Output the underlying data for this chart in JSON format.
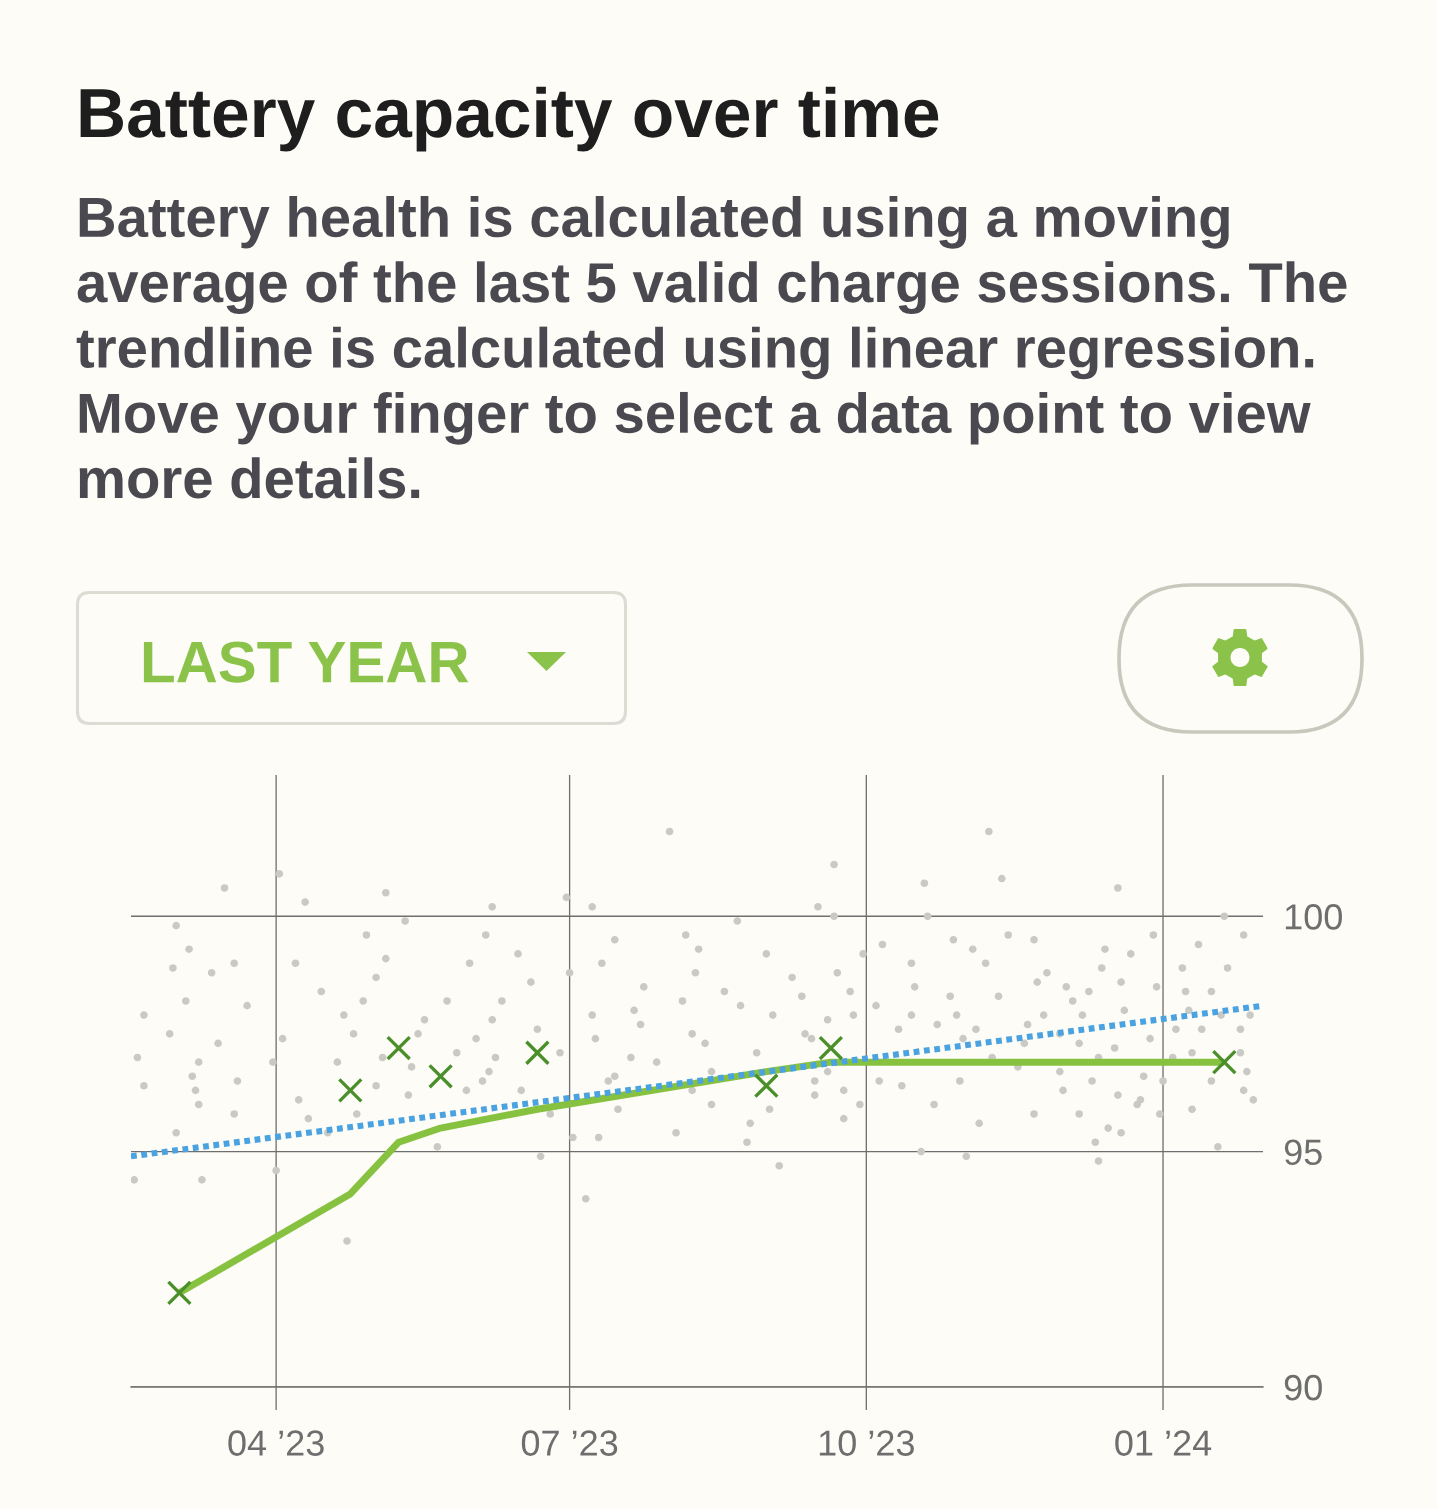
{
  "chart_data": {
    "type": "line",
    "title": "Battery capacity over time",
    "subtitle": "Battery health is calculated using a moving average of the last 5 valid charge sessions. The trendline is calculated using linear regression. Move your finger to select a data point to view more details.",
    "annotations": [
      "LAST YEAR"
    ],
    "x": [
      "2023-03-02",
      "2023-04-24",
      "2023-05-09",
      "2023-05-22",
      "2023-06-21",
      "2023-08-31",
      "2023-09-20",
      "2024-01-20"
    ],
    "series": [
      {
        "type": "scatter",
        "marker": "circle",
        "color": "#c9c9c6",
        "x": [
          "2023-04-02",
          "2023-03-16",
          "2023-04-10",
          "2023-03-01",
          "2023-03-05",
          "2023-02-28",
          "2023-03-12",
          "2023-04-07",
          "2023-04-15",
          "2023-02-19",
          "2023-03-04",
          "2023-03-23",
          "2023-02-27",
          "2023-03-14",
          "2023-04-22",
          "2023-02-17",
          "2023-03-08",
          "2023-03-06",
          "2023-03-31",
          "2023-02-19",
          "2023-03-07",
          "2023-03-20",
          "2023-03-08",
          "2023-03-19",
          "2023-03-01",
          "2023-04-11",
          "2023-04-17",
          "2023-02-16",
          "2023-03-09",
          "2023-04-01",
          "2023-04-23",
          "2023-04-08",
          "2023-04-03",
          "2023-04-20",
          "2023-03-19",
          "2023-05-05",
          "2023-06-07",
          "2023-06-30",
          "2023-05-11",
          "2023-04-29",
          "2023-06-05",
          "2023-05-05",
          "2023-06-15",
          "2023-05-02",
          "2023-05-31",
          "2023-07-01",
          "2023-06-19",
          "2023-04-28",
          "2023-05-24",
          "2023-06-10",
          "2023-05-17",
          "2023-06-07",
          "2023-04-25",
          "2023-06-21",
          "2023-05-15",
          "2023-06-02",
          "2023-05-04",
          "2023-05-27",
          "2023-06-08",
          "2023-06-28",
          "2023-05-13",
          "2023-06-06",
          "2023-05-02",
          "2023-06-04",
          "2023-05-12",
          "2023-05-30",
          "2023-06-16",
          "2023-04-26",
          "2023-06-25",
          "2023-05-21",
          "2023-06-22",
          "2023-07-02",
          "2023-07-06",
          "2023-08-01",
          "2023-07-08",
          "2023-08-22",
          "2023-07-15",
          "2023-08-06",
          "2023-07-11",
          "2023-08-10",
          "2023-08-31",
          "2023-07-24",
          "2023-08-09",
          "2023-09-08",
          "2023-08-18",
          "2023-07-08",
          "2023-07-21",
          "2023-08-05",
          "2023-08-23",
          "2023-09-11",
          "2023-07-23",
          "2023-08-08",
          "2023-09-02",
          "2023-07-09",
          "2023-08-12",
          "2023-09-12",
          "2023-07-28",
          "2023-08-28",
          "2023-07-20",
          "2023-07-15",
          "2023-08-14",
          "2023-07-13",
          "2023-08-08",
          "2023-09-15",
          "2023-09-15",
          "2023-07-16",
          "2023-08-14",
          "2023-09-01",
          "2023-07-10",
          "2023-08-03",
          "2023-08-26",
          "2023-08-25",
          "2023-09-04",
          "2023-11-08",
          "2023-09-21",
          "2023-11-12",
          "2023-10-19",
          "2023-09-16",
          "2023-09-21",
          "2023-10-20",
          "2023-11-14",
          "2023-10-28",
          "2023-11-22",
          "2023-09-30",
          "2023-10-06",
          "2023-11-03",
          "2023-10-15",
          "2023-11-07",
          "2023-09-22",
          "2023-11-23",
          "2023-10-16",
          "2023-09-26",
          "2023-10-27",
          "2023-11-11",
          "2023-10-04",
          "2023-10-15",
          "2023-10-29",
          "2023-11-25",
          "2023-09-27",
          "2023-09-19",
          "2023-10-23",
          "2023-11-20",
          "2023-10-11",
          "2023-10-31",
          "2023-11-04",
          "2023-09-14",
          "2023-11-19",
          "2023-11-09",
          "2023-09-19",
          "2023-09-24",
          "2023-10-05",
          "2023-10-12",
          "2023-10-30",
          "2023-11-17",
          "2023-09-24",
          "2023-09-29",
          "2023-10-22",
          "2023-11-05",
          "2023-11-22",
          "2023-10-18",
          "2023-11-01",
          "2023-12-18",
          "2024-01-20",
          "2024-01-26",
          "2023-12-29",
          "2023-12-14",
          "2024-01-12",
          "2023-12-22",
          "2023-12-13",
          "2024-01-07",
          "2024-01-21",
          "2023-11-26",
          "2023-12-02",
          "2023-12-19",
          "2023-12-09",
          "2023-12-30",
          "2024-01-08",
          "2024-01-16",
          "2023-12-04",
          "2023-12-07",
          "2023-12-20",
          "2024-01-09",
          "2024-01-19",
          "2024-01-28",
          "2023-11-30",
          "2024-01-05",
          "2024-01-13",
          "2024-01-25",
          "2023-12-06",
          "2023-12-28",
          "2023-12-17",
          "2024-01-25",
          "2024-01-10",
          "2023-12-12",
          "2024-01-04",
          "2023-11-30",
          "2023-12-01",
          "2023-12-10",
          "2023-12-18",
          "2023-12-26",
          "2024-01-01",
          "2024-01-16",
          "2024-01-27",
          "2024-01-26",
          "2024-01-29",
          "2023-12-25",
          "2023-12-24",
          "2023-12-31",
          "2023-12-06",
          "2024-01-10",
          "2023-12-15",
          "2023-12-19",
          "2023-12-11",
          "2023-12-12",
          "2024-01-18"
        ],
        "values": [
          100.9,
          100.6,
          100.3,
          99.8,
          99.3,
          98.9,
          98.8,
          99.0,
          98.4,
          97.9,
          98.2,
          98.1,
          97.5,
          97.3,
          97.9,
          97.0,
          96.9,
          96.6,
          96.9,
          96.4,
          96.3,
          96.5,
          96.0,
          95.8,
          95.4,
          95.7,
          95.4,
          94.4,
          94.4,
          94.6,
          93.1,
          96.1,
          97.4,
          96.9,
          99.0,
          100.5,
          100.2,
          100.4,
          99.9,
          99.6,
          99.6,
          99.1,
          99.2,
          98.7,
          99.0,
          98.8,
          98.6,
          98.2,
          98.2,
          98.2,
          97.8,
          97.8,
          97.5,
          97.6,
          97.5,
          97.4,
          97.0,
          97.1,
          97.0,
          97.1,
          96.8,
          96.7,
          96.4,
          96.5,
          96.2,
          96.3,
          96.3,
          95.8,
          95.8,
          95.1,
          94.9,
          95.3,
          94.0,
          101.8,
          100.2,
          99.9,
          99.5,
          99.6,
          99.0,
          99.3,
          99.2,
          98.5,
          98.8,
          98.7,
          98.4,
          97.9,
          98.0,
          98.2,
          98.1,
          98.3,
          97.7,
          97.5,
          97.9,
          97.4,
          97.3,
          97.5,
          96.9,
          97.1,
          97.0,
          96.6,
          96.7,
          96.5,
          96.3,
          96.5,
          96.2,
          95.9,
          96.0,
          95.9,
          95.3,
          95.4,
          95.6,
          95.2,
          94.7,
          101.8,
          101.1,
          100.8,
          100.7,
          100.2,
          100.0,
          100.0,
          99.6,
          99.5,
          99.5,
          99.2,
          99.4,
          99.3,
          99.0,
          99.0,
          98.8,
          98.6,
          98.5,
          98.4,
          98.3,
          98.3,
          98.1,
          97.9,
          97.9,
          97.9,
          97.9,
          97.8,
          97.7,
          97.7,
          97.6,
          97.4,
          97.6,
          97.4,
          97.3,
          97.0,
          96.7,
          96.3,
          96.5,
          96.4,
          96.5,
          96.8,
          95.7,
          96.0,
          96.0,
          95.6,
          95.8,
          95.0,
          94.9,
          100.6,
          100.0,
          99.6,
          99.6,
          99.3,
          99.4,
          99.2,
          98.9,
          98.9,
          98.9,
          98.8,
          98.5,
          98.6,
          98.4,
          98.5,
          98.4,
          98.4,
          98.2,
          97.9,
          98.0,
          98.0,
          97.9,
          97.9,
          97.5,
          97.6,
          97.6,
          97.6,
          97.3,
          97.4,
          97.2,
          97.1,
          97.1,
          97.0,
          97.0,
          96.7,
          96.3,
          96.5,
          96.2,
          96.6,
          96.5,
          96.5,
          96.7,
          96.3,
          96.1,
          96.1,
          96.0,
          95.8,
          95.8,
          95.9,
          95.5,
          95.4,
          95.2,
          94.8,
          95.1
        ]
      },
      {
        "marker": "none",
        "line_style": "solid",
        "color": "#86c240",
        "values": [
          92.0,
          94.1,
          95.2,
          95.5,
          95.9,
          96.7,
          96.9,
          96.9
        ]
      },
      {
        "type": "line",
        "marker": "none",
        "line_style": "dotted",
        "color": "#4aa3e0",
        "x": [
          "2023-02-15",
          "2024-02-01"
        ],
        "values": [
          94.9,
          98.1
        ]
      },
      {
        "type": "scatter",
        "marker": "cross",
        "color": "#4a8f2a",
        "values": [
          92.0,
          96.3,
          97.2,
          96.6,
          97.1,
          96.4,
          97.2,
          96.9
        ]
      }
    ],
    "xlim": [
      "2023-02-15",
      "2024-02-01"
    ],
    "xticks": [
      {
        "value": "2023-04-01",
        "label": "04 ’23"
      },
      {
        "value": "2023-07-01",
        "label": "07 ’23"
      },
      {
        "value": "2023-10-01",
        "label": "10 ’23"
      },
      {
        "value": "2024-01-01",
        "label": "01 ’24"
      }
    ],
    "ylim": [
      90,
      103
    ],
    "yticks": [
      90,
      95,
      100
    ],
    "grid": true
  }
}
